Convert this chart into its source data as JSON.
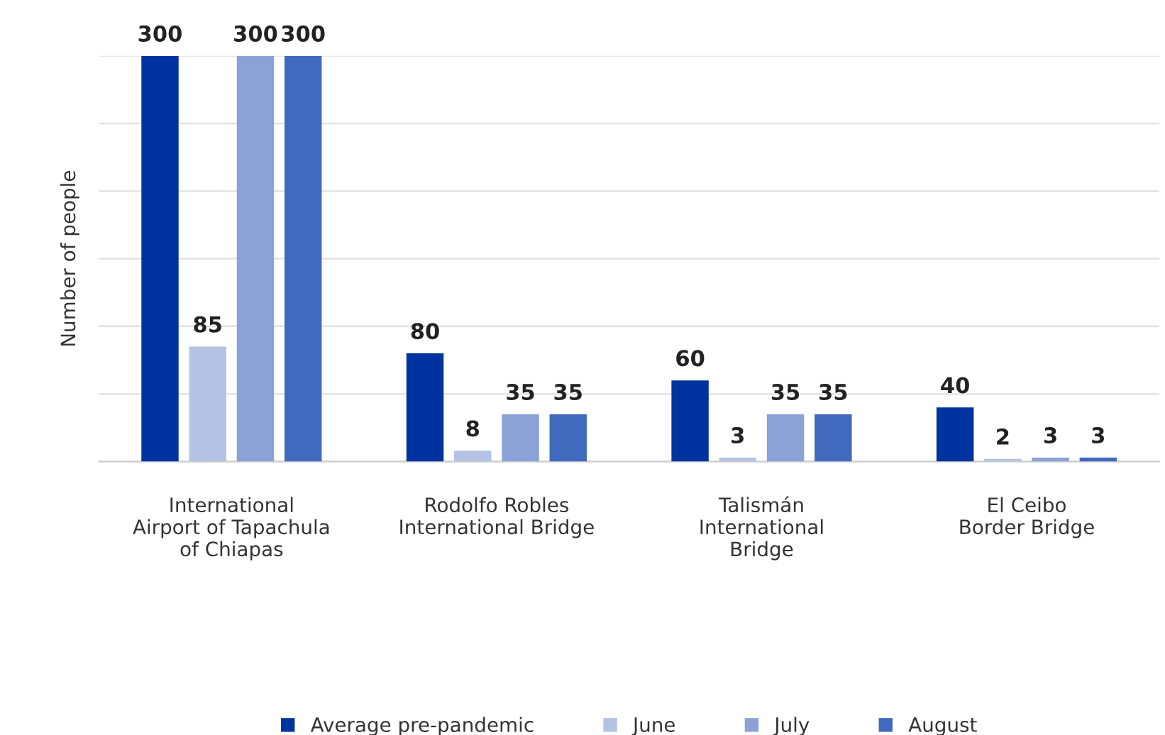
{
  "chart_data": {
    "type": "bar",
    "ylabel": "Number of people",
    "categories": [
      "International\nAirport of Tapachula\nof Chiapas",
      "Rodolfo Robles\nInternational Bridge",
      "Talismán\nInternational\nBridge",
      "El Ceibo\nBorder Bridge"
    ],
    "series": [
      {
        "name": "Average pre-pandemic",
        "color": "#0033a0",
        "values": [
          300,
          80,
          60,
          40
        ]
      },
      {
        "name": "June",
        "color": "#b4c3e4",
        "values": [
          85,
          8,
          3,
          2
        ]
      },
      {
        "name": "July",
        "color": "#8aa2d6",
        "values": [
          300,
          35,
          35,
          3
        ]
      },
      {
        "name": "August",
        "color": "#4169be",
        "values": [
          300,
          35,
          35,
          3
        ]
      }
    ],
    "ylim": [
      0,
      300
    ],
    "yticks": [
      {
        "value": 0,
        "label": null
      },
      {
        "value": 50,
        "label": null
      },
      {
        "value": 100,
        "label": null
      },
      {
        "value": 150,
        "label": null
      },
      {
        "value": 200,
        "label": null
      },
      {
        "value": 250,
        "label": null
      },
      {
        "value": 300,
        "label": null
      }
    ],
    "tick_labels": "x",
    "grid": "y",
    "legend": "bottom",
    "data_labels": true
  }
}
